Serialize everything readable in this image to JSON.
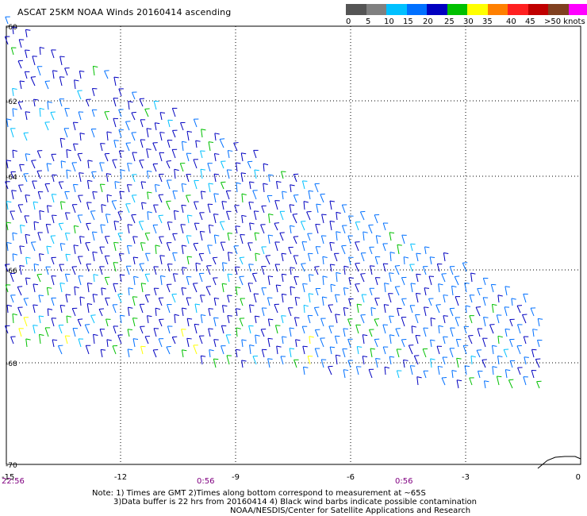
{
  "title": "ASCAT 25KM NOAA Winds 20160414 ascending",
  "colorbar": {
    "colors": [
      "#555555",
      "#808080",
      "#00c0ff",
      "#0070ff",
      "#0000c0",
      "#00c000",
      "#ffff00",
      "#ff8000",
      "#ff2020",
      "#c00000",
      "#804020",
      "#ff00ff",
      "#8000c0"
    ],
    "labels": [
      "0",
      "5",
      "10",
      "15",
      "20",
      "25",
      "30",
      "35",
      "40",
      "45",
      ">50 knots"
    ]
  },
  "map": {
    "lon_ticks": [
      "-15",
      "-12",
      "-9",
      "-6",
      "-3",
      "0"
    ],
    "lat_ticks": [
      "-60",
      "-62",
      "-64",
      "-66",
      "-68",
      "-70"
    ],
    "time_labels": [
      "22:56",
      "0:56",
      "0:56"
    ]
  },
  "notes": {
    "line1": "Note: 1) Times are GMT 2)Times along bottom correspond to measurement at ~65S",
    "line2": "3)Data buffer is 22 hrs from 20160414 4) Black wind barbs indicate possible contamination",
    "line3": "NOAA/NESDIS/Center for Satellite Applications and Research"
  }
}
